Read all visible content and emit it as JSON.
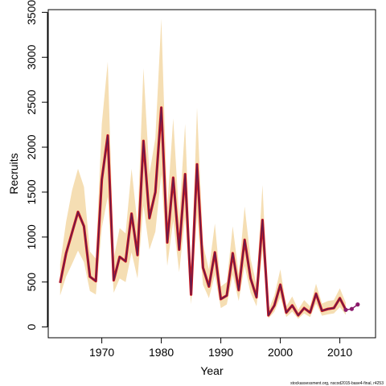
{
  "chart_data": {
    "type": "line",
    "title": "",
    "xlabel": "Year",
    "ylabel": "Recruits",
    "xlim": [
      1961,
      2016
    ],
    "ylim": [
      -120,
      3530
    ],
    "x_ticks": [
      1970,
      1980,
      1990,
      2000,
      2010
    ],
    "x_tick_labels": [
      "1970",
      "1980",
      "1990",
      "2000",
      "2010"
    ],
    "y_ticks": [
      0,
      500,
      1000,
      1500,
      2000,
      2500,
      3000,
      3500
    ],
    "y_tick_labels": [
      "0",
      "500",
      "1000",
      "1500",
      "2000",
      "2500",
      "3000",
      "3500"
    ],
    "grid": false,
    "legend": "none",
    "colors": {
      "band": "#f5deb3",
      "line_outer": "#d7191c",
      "line_inner": "#6b1a4a",
      "projection": "#8b1a6b"
    },
    "series": [
      {
        "x": [
          1963,
          1964,
          1965,
          1966,
          1967,
          1968,
          1969,
          1970,
          1971,
          1972,
          1973,
          1974,
          1975,
          1976,
          1977,
          1978,
          1979,
          1980,
          1981,
          1982,
          1983,
          1984,
          1985,
          1986,
          1987,
          1988,
          1989,
          1990,
          1991,
          1992,
          1993,
          1994,
          1995,
          1996,
          1997,
          1998,
          1999,
          2000,
          2001,
          2002,
          2003,
          2004,
          2005,
          2006,
          2007,
          2008,
          2009,
          2010,
          2011
        ],
        "values": [
          490,
          820,
          1050,
          1280,
          1120,
          560,
          510,
          1640,
          2130,
          520,
          780,
          730,
          1260,
          800,
          2070,
          1210,
          1500,
          2440,
          940,
          1660,
          860,
          1700,
          360,
          1810,
          660,
          450,
          830,
          310,
          350,
          820,
          410,
          970,
          540,
          330,
          1190,
          130,
          240,
          470,
          160,
          240,
          130,
          210,
          160,
          370,
          180,
          200,
          210,
          320,
          190
        ],
        "lower": [
          350,
          560,
          700,
          850,
          720,
          400,
          360,
          1100,
          1450,
          380,
          540,
          500,
          830,
          540,
          1350,
          860,
          1060,
          1700,
          680,
          1180,
          610,
          1220,
          250,
          1250,
          470,
          320,
          580,
          210,
          250,
          580,
          290,
          680,
          380,
          230,
          850,
          95,
          170,
          330,
          110,
          170,
          90,
          150,
          110,
          260,
          125,
          140,
          150,
          220,
          135
        ],
        "upper": [
          700,
          1170,
          1520,
          1760,
          1560,
          840,
          760,
          2260,
          2950,
          760,
          1100,
          1040,
          1760,
          1140,
          2880,
          1700,
          2100,
          3430,
          1330,
          2320,
          1210,
          2260,
          510,
          2440,
          920,
          640,
          1150,
          450,
          500,
          1120,
          590,
          1340,
          760,
          470,
          1580,
          190,
          350,
          640,
          230,
          340,
          190,
          300,
          230,
          480,
          260,
          290,
          300,
          430,
          270
        ]
      },
      {
        "x": [
          2011,
          2012,
          2013
        ],
        "values": [
          190,
          200,
          250
        ]
      }
    ]
  },
  "footnote": "stockassessment.org, nscod2015-base4-final, r4253"
}
